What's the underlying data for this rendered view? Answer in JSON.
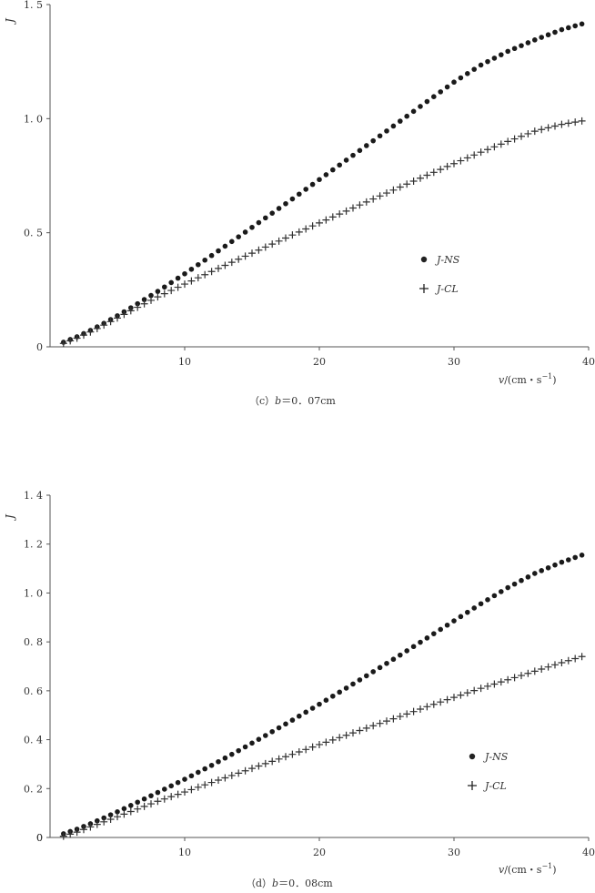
{
  "chart_data": [
    {
      "type": "scatter",
      "title": "",
      "caption_prefix": "（c）",
      "caption_var": "b",
      "caption_value": "＝0．07cm",
      "ylabel": "J",
      "xlabel_var": "v",
      "xlabel_units": "/(cm・s",
      "xlabel_exp": "−1",
      "xlabel_close": ")",
      "xlim": [
        0,
        40
      ],
      "ylim": [
        0,
        1.5
      ],
      "xticks": [
        10,
        20,
        30,
        40
      ],
      "xtick_labels": [
        "10",
        "20",
        "30",
        "40"
      ],
      "yticks": [
        0,
        0.5,
        1.0,
        1.5
      ],
      "ytick_labels": [
        "0",
        "0. 5",
        "1. 0",
        "1. 5"
      ],
      "x_origin_label": "",
      "legend_position": "right-middle",
      "series": [
        {
          "name": "J-NS",
          "marker": "dot",
          "x": [
            1,
            2,
            3,
            4,
            5,
            6,
            8,
            10,
            12,
            14,
            16,
            18,
            20,
            22,
            24,
            26,
            28,
            30,
            32,
            34,
            36,
            38,
            39.5
          ],
          "y": [
            0.02,
            0.044,
            0.072,
            0.103,
            0.136,
            0.171,
            0.243,
            0.32,
            0.4,
            0.482,
            0.565,
            0.648,
            0.733,
            0.818,
            0.903,
            0.989,
            1.075,
            1.16,
            1.235,
            1.295,
            1.345,
            1.39,
            1.415
          ]
        },
        {
          "name": "J-CL",
          "marker": "plus",
          "x": [
            1,
            2,
            3,
            4,
            5,
            6,
            8,
            10,
            12,
            14,
            16,
            18,
            20,
            22,
            24,
            26,
            28,
            30,
            32,
            34,
            36,
            38,
            39.5
          ],
          "y": [
            0.015,
            0.038,
            0.065,
            0.095,
            0.126,
            0.158,
            0.219,
            0.275,
            0.33,
            0.384,
            0.437,
            0.49,
            0.543,
            0.595,
            0.648,
            0.7,
            0.752,
            0.803,
            0.853,
            0.9,
            0.945,
            0.975,
            0.99
          ]
        }
      ]
    },
    {
      "type": "scatter",
      "title": "",
      "caption_prefix": "（d）",
      "caption_var": "b",
      "caption_value": "＝0．08cm",
      "ylabel": "J",
      "xlabel_var": "v",
      "xlabel_units": "/(cm・s",
      "xlabel_exp": "−1",
      "xlabel_close": ")",
      "xlim": [
        0,
        40
      ],
      "ylim": [
        0,
        1.4
      ],
      "xticks": [
        10,
        20,
        30,
        40
      ],
      "xtick_labels": [
        "10",
        "20",
        "30",
        "40"
      ],
      "yticks": [
        0,
        0.2,
        0.4,
        0.6,
        0.8,
        1.0,
        1.2,
        1.4
      ],
      "ytick_labels": [
        "0",
        "0. 2",
        "0. 4",
        "0. 6",
        "0. 8",
        "1. 0",
        "1. 2",
        "1. 4"
      ],
      "x_origin_label": "0",
      "legend_position": "right-bottom",
      "series": [
        {
          "name": "J-NS",
          "marker": "dot",
          "x": [
            1,
            2,
            3,
            4,
            5,
            6,
            8,
            10,
            12,
            14,
            16,
            18,
            20,
            22,
            24,
            26,
            28,
            30,
            32,
            34,
            36,
            38,
            39.5
          ],
          "y": [
            0.015,
            0.034,
            0.056,
            0.08,
            0.105,
            0.131,
            0.184,
            0.238,
            0.295,
            0.355,
            0.417,
            0.48,
            0.545,
            0.611,
            0.678,
            0.746,
            0.816,
            0.886,
            0.956,
            1.022,
            1.08,
            1.126,
            1.155
          ]
        },
        {
          "name": "J-CL",
          "marker": "plus",
          "x": [
            1,
            2,
            3,
            4,
            5,
            6,
            8,
            10,
            12,
            14,
            16,
            18,
            20,
            22,
            24,
            26,
            28,
            30,
            32,
            34,
            36,
            38,
            39.5
          ],
          "y": [
            0.005,
            0.022,
            0.043,
            0.064,
            0.085,
            0.106,
            0.148,
            0.186,
            0.225,
            0.263,
            0.302,
            0.34,
            0.38,
            0.418,
            0.457,
            0.495,
            0.535,
            0.573,
            0.61,
            0.645,
            0.68,
            0.715,
            0.74
          ]
        }
      ]
    }
  ]
}
